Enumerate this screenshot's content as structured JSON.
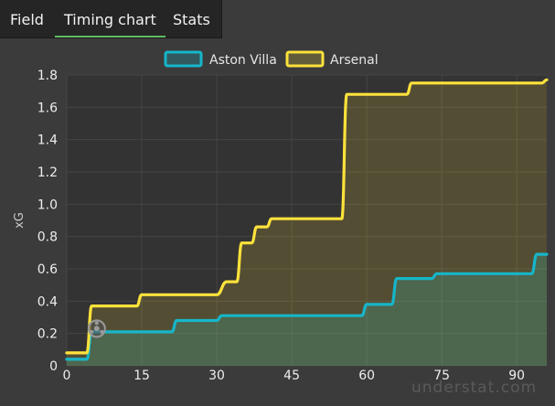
{
  "tabs": [
    {
      "label": "Field",
      "active": false
    },
    {
      "label": "Timing chart",
      "active": true
    },
    {
      "label": "Stats",
      "active": false
    }
  ],
  "watermark": "understat.com",
  "chart_data": {
    "type": "line",
    "title": "",
    "xlabel": "",
    "ylabel": "xG",
    "xlim": [
      0,
      96
    ],
    "ylim": [
      0,
      1.8
    ],
    "x_ticks": [
      0,
      15,
      30,
      45,
      60,
      75,
      90
    ],
    "y_ticks": [
      0,
      0.2,
      0.4,
      0.6,
      0.8,
      1.0,
      1.2,
      1.4,
      1.6,
      1.8
    ],
    "y_tick_labels": [
      "0",
      "0.2",
      "0.4",
      "0.6",
      "0.8",
      "1.0",
      "1.2",
      "1.4",
      "1.6",
      "1.8"
    ],
    "grid": true,
    "legend": "top-center",
    "series": [
      {
        "name": "Aston Villa",
        "color": "#16b6c9",
        "points": [
          [
            0,
            0.04
          ],
          [
            4,
            0.04
          ],
          [
            5,
            0.21
          ],
          [
            21,
            0.21
          ],
          [
            22,
            0.28
          ],
          [
            30,
            0.28
          ],
          [
            31,
            0.31
          ],
          [
            59,
            0.31
          ],
          [
            60,
            0.38
          ],
          [
            65,
            0.38
          ],
          [
            66,
            0.54
          ],
          [
            73,
            0.54
          ],
          [
            74,
            0.57
          ],
          [
            93,
            0.57
          ],
          [
            94,
            0.69
          ],
          [
            96,
            0.69
          ]
        ],
        "goals": [
          [
            6,
            0.23
          ]
        ]
      },
      {
        "name": "Arsenal",
        "color": "#ffe23b",
        "points": [
          [
            0,
            0.08
          ],
          [
            4,
            0.08
          ],
          [
            5,
            0.37
          ],
          [
            14,
            0.37
          ],
          [
            15,
            0.44
          ],
          [
            30,
            0.44
          ],
          [
            32,
            0.52
          ],
          [
            34,
            0.52
          ],
          [
            35,
            0.76
          ],
          [
            37,
            0.76
          ],
          [
            38,
            0.86
          ],
          [
            40,
            0.86
          ],
          [
            41,
            0.91
          ],
          [
            55,
            0.91
          ],
          [
            56,
            1.68
          ],
          [
            68,
            1.68
          ],
          [
            69,
            1.75
          ],
          [
            95,
            1.75
          ],
          [
            96,
            1.77
          ]
        ],
        "goals": []
      }
    ]
  }
}
